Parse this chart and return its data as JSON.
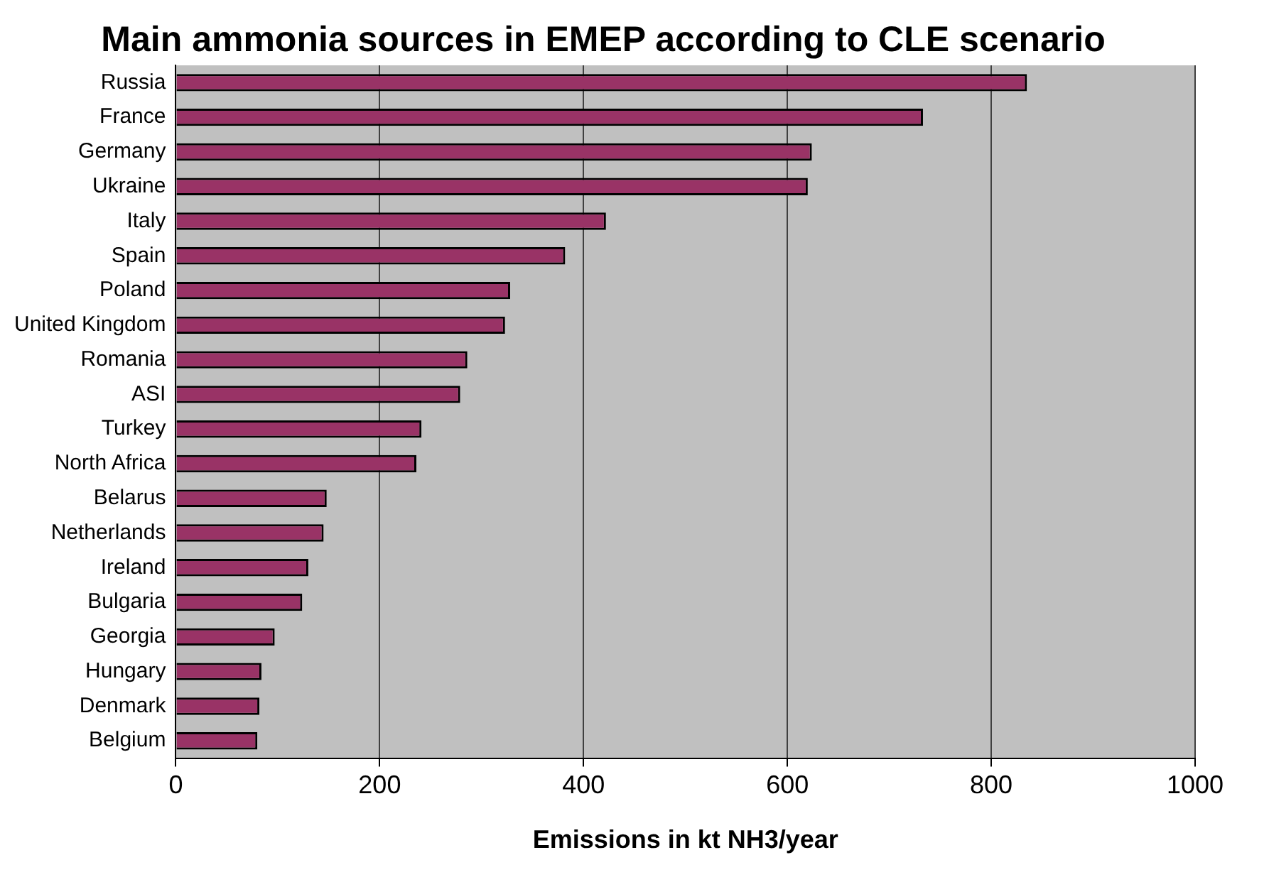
{
  "chart_data": {
    "type": "bar",
    "orientation": "horizontal",
    "title": "Main ammonia sources in EMEP according to CLE scenario",
    "xlabel": "Emissions in kt NH3/year",
    "categories": [
      "Russia",
      "France",
      "Germany",
      "Ukraine",
      "Italy",
      "Spain",
      "Poland",
      "United Kingdom",
      "Romania",
      "ASI",
      "Turkey",
      "North Africa",
      "Belarus",
      "Netherlands",
      "Ireland",
      "Bulgaria",
      "Georgia",
      "Hungary",
      "Denmark",
      "Belgium"
    ],
    "values": [
      835,
      733,
      624,
      620,
      422,
      382,
      328,
      323,
      286,
      279,
      241,
      236,
      148,
      145,
      130,
      124,
      97,
      84,
      82,
      80
    ],
    "color": "#993366",
    "xlim": [
      0,
      1000
    ],
    "xticks": [
      0,
      200,
      400,
      600,
      800,
      1000
    ],
    "grid": "x",
    "legend": false
  }
}
